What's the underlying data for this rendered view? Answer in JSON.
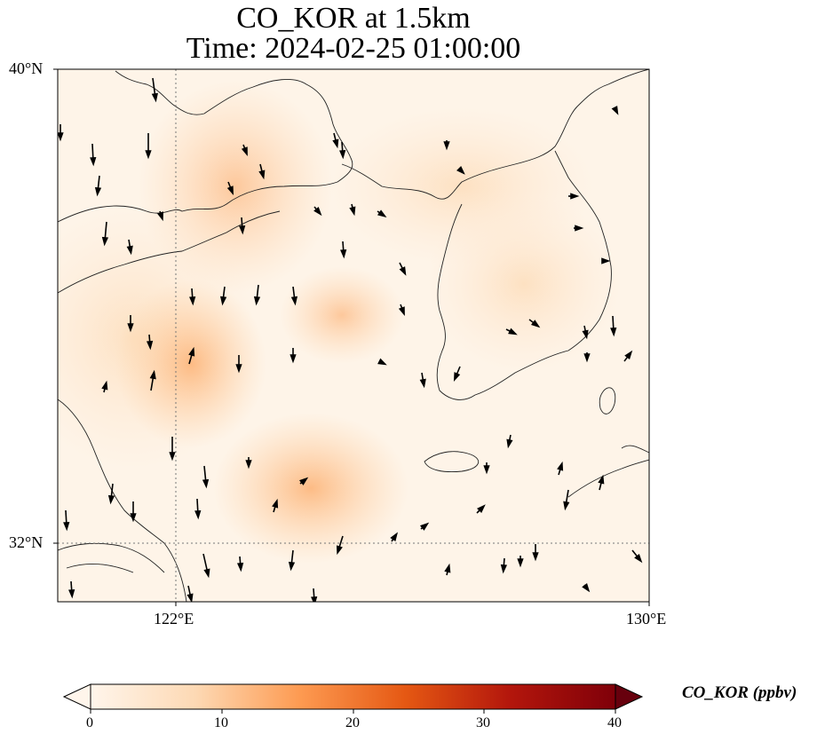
{
  "title_line1": "CO_KOR at 1.5km",
  "title_line2": "Time: 2024-02-25 01:00:00",
  "lat_labels": [
    "40°N",
    "32°N"
  ],
  "lon_labels": [
    "122°E",
    "130°E"
  ],
  "colorbar": {
    "label": "CO_KOR (ppbv)",
    "ticks": [
      "0",
      "10",
      "20",
      "30",
      "40"
    ],
    "colors": [
      "#fff5eb",
      "#fdd2a5",
      "#fd9243",
      "#d94801",
      "#a50f15",
      "#67000d"
    ]
  },
  "legend_colors": {
    "coast": "#222222",
    "grid": "#777777",
    "arrow": "#000000"
  }
}
